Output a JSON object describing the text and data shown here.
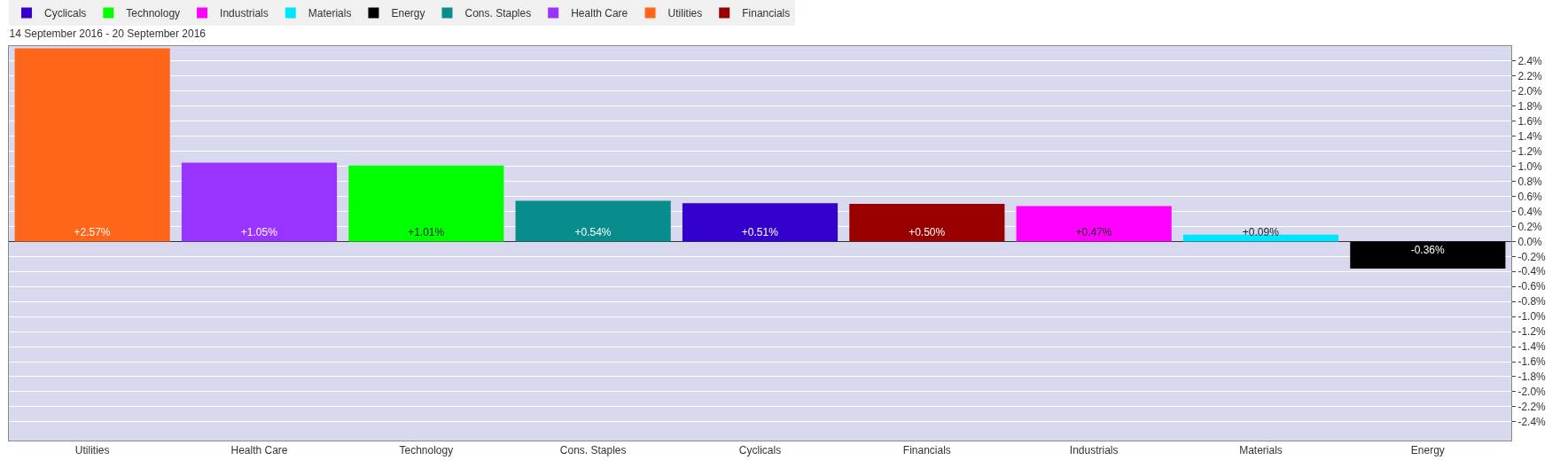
{
  "chart_data": {
    "type": "bar",
    "title": "14 September 2016 - 20 September 2016",
    "categories": [
      "Utilities",
      "Health Care",
      "Technology",
      "Cons. Staples",
      "Cyclicals",
      "Financials",
      "Industrials",
      "Materials",
      "Energy"
    ],
    "series": [
      {
        "name": "Cyclicals",
        "color": "#3300cc",
        "values": [
          null,
          null,
          null,
          null,
          0.51,
          null,
          null,
          null,
          null
        ],
        "value_labels": [
          null,
          null,
          null,
          null,
          "+0.51%",
          null,
          null,
          null,
          null
        ]
      },
      {
        "name": "Technology",
        "color": "#00ff00",
        "values": [
          null,
          null,
          1.01,
          null,
          null,
          null,
          null,
          null,
          null
        ],
        "value_labels": [
          null,
          null,
          "+1.01%",
          null,
          null,
          null,
          null,
          null,
          null
        ]
      },
      {
        "name": "Industrials",
        "color": "#ff00ff",
        "values": [
          null,
          null,
          null,
          null,
          null,
          null,
          0.47,
          null,
          null
        ],
        "value_labels": [
          null,
          null,
          null,
          null,
          null,
          null,
          "+0.47%",
          null,
          null
        ]
      },
      {
        "name": "Materials",
        "color": "#00e5ff",
        "values": [
          null,
          null,
          null,
          null,
          null,
          null,
          null,
          0.09,
          null
        ],
        "value_labels": [
          null,
          null,
          null,
          null,
          null,
          null,
          null,
          "+0.09%",
          null
        ]
      },
      {
        "name": "Energy",
        "color": "#000000",
        "values": [
          null,
          null,
          null,
          null,
          null,
          null,
          null,
          null,
          -0.36
        ],
        "value_labels": [
          null,
          null,
          null,
          null,
          null,
          null,
          null,
          null,
          "-0.36%"
        ]
      },
      {
        "name": "Cons. Staples",
        "color": "#088c8c",
        "values": [
          null,
          null,
          null,
          0.54,
          null,
          null,
          null,
          null,
          null
        ],
        "value_labels": [
          null,
          null,
          null,
          "+0.54%",
          null,
          null,
          null,
          null,
          null
        ]
      },
      {
        "name": "Health Care",
        "color": "#9933ff",
        "values": [
          null,
          1.05,
          null,
          null,
          null,
          null,
          null,
          null,
          null
        ],
        "value_labels": [
          null,
          "+1.05%",
          null,
          null,
          null,
          null,
          null,
          null,
          null
        ]
      },
      {
        "name": "Utilities",
        "color": "#ff6619",
        "values": [
          2.57,
          null,
          null,
          null,
          null,
          null,
          null,
          null,
          null
        ],
        "value_labels": [
          "+2.57%",
          null,
          null,
          null,
          null,
          null,
          null,
          null,
          null
        ]
      },
      {
        "name": "Financials",
        "color": "#990000",
        "values": [
          null,
          null,
          null,
          null,
          null,
          0.5,
          null,
          null,
          null
        ],
        "value_labels": [
          null,
          null,
          null,
          null,
          null,
          "+0.50%",
          null,
          null,
          null
        ]
      }
    ],
    "ylim": [
      -2.65,
      2.6
    ],
    "yticks": [
      {
        "value": 2.4,
        "label": "2.4%"
      },
      {
        "value": 2.2,
        "label": "2.2%"
      },
      {
        "value": 2.0,
        "label": "2.0%"
      },
      {
        "value": 1.8,
        "label": "1.8%"
      },
      {
        "value": 1.6,
        "label": "1.6%"
      },
      {
        "value": 1.4,
        "label": "1.4%"
      },
      {
        "value": 1.2,
        "label": "1.2%"
      },
      {
        "value": 1.0,
        "label": "1.0%"
      },
      {
        "value": 0.8,
        "label": "0.8%"
      },
      {
        "value": 0.6,
        "label": "0.6%"
      },
      {
        "value": 0.4,
        "label": "0.4%"
      },
      {
        "value": 0.2,
        "label": "0.2%"
      },
      {
        "value": 0,
        "label": "0.0%"
      },
      {
        "value": -0.2,
        "label": "-0.2%"
      },
      {
        "value": -0.4,
        "label": "-0.4%"
      },
      {
        "value": -0.6,
        "label": "-0.6%"
      },
      {
        "value": -0.8,
        "label": "-0.8%"
      },
      {
        "value": -1.0,
        "label": "-1.0%"
      },
      {
        "value": -1.2,
        "label": "-1.2%"
      },
      {
        "value": -1.4,
        "label": "-1.4%"
      },
      {
        "value": -1.6,
        "label": "-1.6%"
      },
      {
        "value": -1.8,
        "label": "-1.8%"
      },
      {
        "value": -2.0,
        "label": "-2.0%"
      },
      {
        "value": -2.2,
        "label": "-2.2%"
      },
      {
        "value": -2.4,
        "label": "-2.4%"
      }
    ],
    "grid": "y",
    "legend": "top left"
  }
}
